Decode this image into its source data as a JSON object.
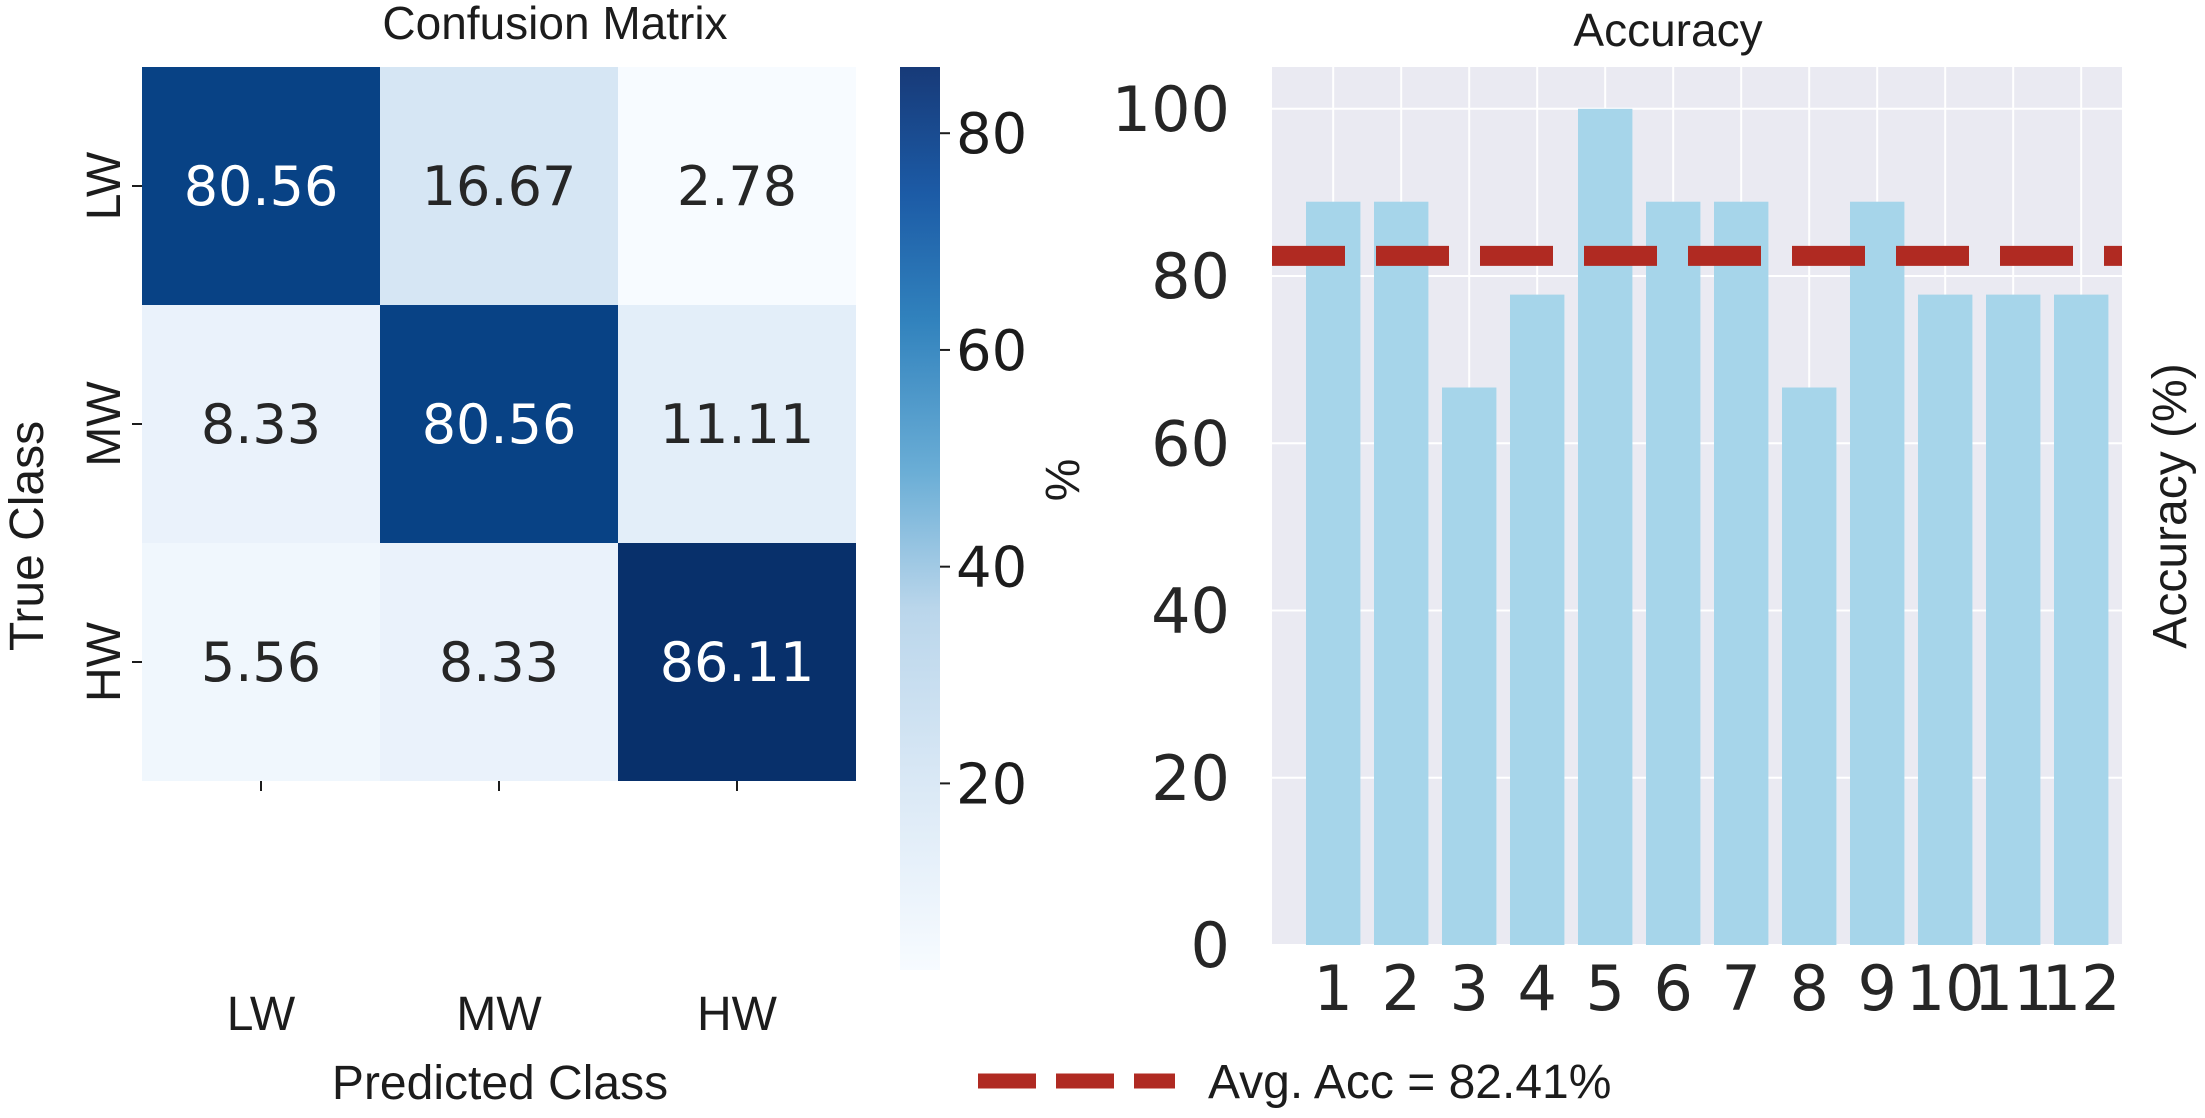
{
  "chart_data": [
    {
      "type": "heatmap",
      "title": "Confusion Matrix",
      "xlabel": "Predicted Class",
      "ylabel": "True Class",
      "x_categories": [
        "LW",
        "MW",
        "HW"
      ],
      "y_categories": [
        "LW",
        "MW",
        "HW"
      ],
      "values": [
        [
          80.56,
          16.67,
          2.78
        ],
        [
          8.33,
          80.56,
          11.11
        ],
        [
          5.56,
          8.33,
          86.11
        ]
      ],
      "value_labels": [
        [
          "80.56",
          "16.67",
          "2.78"
        ],
        [
          "8.33",
          "80.56",
          "11.11"
        ],
        [
          "5.56",
          "8.33",
          "86.11"
        ]
      ],
      "colorbar": {
        "label": "%",
        "range": [
          2.78,
          86.11
        ],
        "ticks": [
          "20",
          "40",
          "60",
          "80"
        ],
        "colormap": "Blues"
      }
    },
    {
      "type": "bar",
      "title": "Accuracy",
      "xlabel": "",
      "ylabel": "Accuracy (%)",
      "categories": [
        "1",
        "2",
        "3",
        "4",
        "5",
        "6",
        "7",
        "8",
        "9",
        "10",
        "11",
        "12"
      ],
      "values": [
        88.89,
        88.89,
        66.67,
        77.78,
        100,
        88.89,
        88.89,
        66.67,
        88.89,
        77.78,
        77.78,
        77.78
      ],
      "ylim": [
        0,
        105
      ],
      "yticks": [
        "0",
        "20",
        "40",
        "60",
        "80",
        "100"
      ],
      "grid": true,
      "bar_color": "#a6d5ea",
      "background": "#eaeaf2",
      "reference_line": {
        "value": 82.41,
        "style": "dashed",
        "color": "#b02a22"
      },
      "legend": {
        "placement": "bottom",
        "entries": [
          "Avg. Acc = 82.41%"
        ]
      }
    }
  ]
}
